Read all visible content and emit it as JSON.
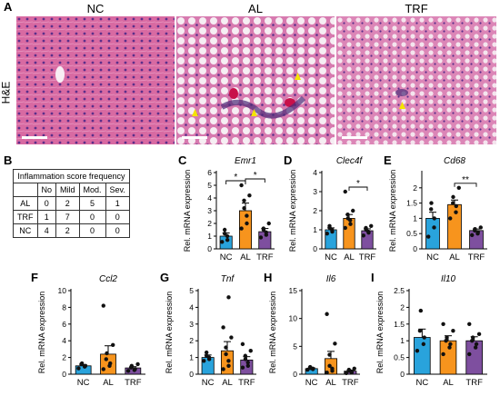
{
  "figure": {
    "panels": {
      "A": "A",
      "B": "B",
      "C": "C",
      "D": "D",
      "E": "E",
      "F": "F",
      "G": "G",
      "H": "H",
      "I": "I"
    },
    "micrographs": {
      "stain_label": "H&E",
      "groups": [
        "NC",
        "AL",
        "TRF"
      ]
    },
    "score_table": {
      "title": "Inflammation score frequency",
      "columns": [
        "",
        "No",
        "Mild",
        "Mod.",
        "Sev."
      ],
      "rows": [
        [
          "AL",
          "0",
          "2",
          "5",
          "1"
        ],
        [
          "TRF",
          "1",
          "7",
          "0",
          "0"
        ],
        [
          "NC",
          "4",
          "2",
          "0",
          "0"
        ]
      ]
    },
    "colors": {
      "NC": "#29a3dc",
      "AL": "#f7941d",
      "TRF": "#7e4f9f"
    }
  },
  "chart_data": [
    {
      "panel": "C",
      "type": "bar",
      "title": "Emr1",
      "ylabel": "Rel. mRNA expression",
      "categories": [
        "NC",
        "AL",
        "TRF"
      ],
      "values": [
        1.0,
        3.0,
        1.35
      ],
      "sem": [
        0.25,
        0.6,
        0.25
      ],
      "ylim": [
        0,
        6
      ],
      "yticks": [
        0,
        1,
        2,
        3,
        4,
        5,
        6
      ],
      "points": [
        [
          0.55,
          0.7,
          1.0,
          1.2,
          1.5
        ],
        [
          1.6,
          2.0,
          2.6,
          3.2,
          3.8,
          4.2,
          5.0
        ],
        [
          0.9,
          1.1,
          1.3,
          1.5,
          1.6,
          2.0
        ]
      ],
      "significance": [
        {
          "from": 0,
          "to": 1,
          "label": "*"
        },
        {
          "from": 1,
          "to": 2,
          "label": "*"
        }
      ]
    },
    {
      "panel": "D",
      "type": "bar",
      "title": "Clec4f",
      "ylabel": "Rel. mRNA expression",
      "categories": [
        "NC",
        "AL",
        "TRF"
      ],
      "values": [
        1.0,
        1.6,
        0.95
      ],
      "sem": [
        0.1,
        0.2,
        0.1
      ],
      "ylim": [
        0,
        4
      ],
      "yticks": [
        0,
        1,
        2,
        3,
        4
      ],
      "points": [
        [
          0.8,
          0.9,
          1.0,
          1.1,
          1.2
        ],
        [
          1.1,
          1.3,
          1.5,
          1.6,
          1.8,
          2.0,
          3.0
        ],
        [
          0.7,
          0.85,
          0.9,
          1.0,
          1.1,
          1.2
        ]
      ],
      "significance": [
        {
          "from": 1,
          "to": 2,
          "label": "*"
        }
      ]
    },
    {
      "panel": "E",
      "type": "bar",
      "title": "Cd68",
      "ylabel": "Rel. mRNA expression",
      "categories": [
        "NC",
        "AL",
        "TRF"
      ],
      "values": [
        1.0,
        1.45,
        0.6
      ],
      "sem": [
        0.2,
        0.15,
        0.05
      ],
      "ylim": [
        0,
        2.5
      ],
      "yticks": [
        0,
        0.5,
        1,
        1.5,
        2
      ],
      "points": [
        [
          0.4,
          0.7,
          1.0,
          1.3,
          1.5
        ],
        [
          1.0,
          1.2,
          1.4,
          1.5,
          1.7,
          2.0
        ],
        [
          0.45,
          0.5,
          0.55,
          0.6,
          0.65,
          0.7
        ]
      ],
      "significance": [
        {
          "from": 1,
          "to": 2,
          "label": "**"
        }
      ]
    },
    {
      "panel": "F",
      "type": "bar",
      "title": "Ccl2",
      "ylabel": "Rel. mRNA expression",
      "categories": [
        "NC",
        "AL",
        "TRF"
      ],
      "values": [
        1.0,
        2.4,
        0.75
      ],
      "sem": [
        0.15,
        1.0,
        0.15
      ],
      "ylim": [
        0,
        10
      ],
      "yticks": [
        0,
        2,
        4,
        6,
        8,
        10
      ],
      "points": [
        [
          0.7,
          0.9,
          1.0,
          1.2,
          1.3
        ],
        [
          0.6,
          1.0,
          1.3,
          1.8,
          2.5,
          3.5,
          8.2
        ],
        [
          0.4,
          0.5,
          0.6,
          0.8,
          1.0,
          1.2
        ]
      ],
      "significance": []
    },
    {
      "panel": "G",
      "type": "bar",
      "title": "Tnf",
      "ylabel": "Rel. mRNA expression",
      "categories": [
        "NC",
        "AL",
        "TRF"
      ],
      "values": [
        1.0,
        1.4,
        0.85
      ],
      "sem": [
        0.15,
        0.55,
        0.2
      ],
      "ylim": [
        0,
        5
      ],
      "yticks": [
        0,
        1,
        2,
        3,
        4,
        5
      ],
      "points": [
        [
          0.8,
          0.9,
          1.0,
          1.1,
          1.3
        ],
        [
          0.3,
          0.5,
          0.8,
          1.2,
          1.6,
          2.2,
          2.8,
          4.6
        ],
        [
          0.4,
          0.5,
          0.7,
          0.9,
          1.1,
          1.4,
          1.8
        ]
      ],
      "significance": []
    },
    {
      "panel": "H",
      "type": "bar",
      "title": "Il6",
      "ylabel": "Rel. mRNA expression",
      "categories": [
        "NC",
        "AL",
        "TRF"
      ],
      "values": [
        1.0,
        2.8,
        0.55
      ],
      "sem": [
        0.15,
        1.3,
        0.15
      ],
      "ylim": [
        0,
        15
      ],
      "yticks": [
        0,
        5,
        10,
        15
      ],
      "points": [
        [
          0.8,
          0.9,
          1.0,
          1.1,
          1.3
        ],
        [
          0.3,
          0.6,
          1.0,
          1.5,
          3.5,
          5.5,
          10.8
        ],
        [
          0.2,
          0.3,
          0.5,
          0.6,
          0.8,
          1.0
        ]
      ],
      "significance": []
    },
    {
      "panel": "I",
      "type": "bar",
      "title": "Il10",
      "ylabel": "Rel. mRNA expression",
      "categories": [
        "NC",
        "AL",
        "TRF"
      ],
      "values": [
        1.1,
        1.0,
        1.0
      ],
      "sem": [
        0.25,
        0.15,
        0.12
      ],
      "ylim": [
        0,
        2.5
      ],
      "yticks": [
        0,
        0.5,
        1,
        1.5,
        2,
        2.5
      ],
      "points": [
        [
          0.7,
          0.9,
          1.1,
          1.3,
          1.9
        ],
        [
          0.6,
          0.8,
          0.9,
          1.0,
          1.1,
          1.3,
          1.5
        ],
        [
          0.6,
          0.8,
          0.9,
          1.0,
          1.1,
          1.2,
          1.5
        ]
      ],
      "significance": []
    }
  ]
}
